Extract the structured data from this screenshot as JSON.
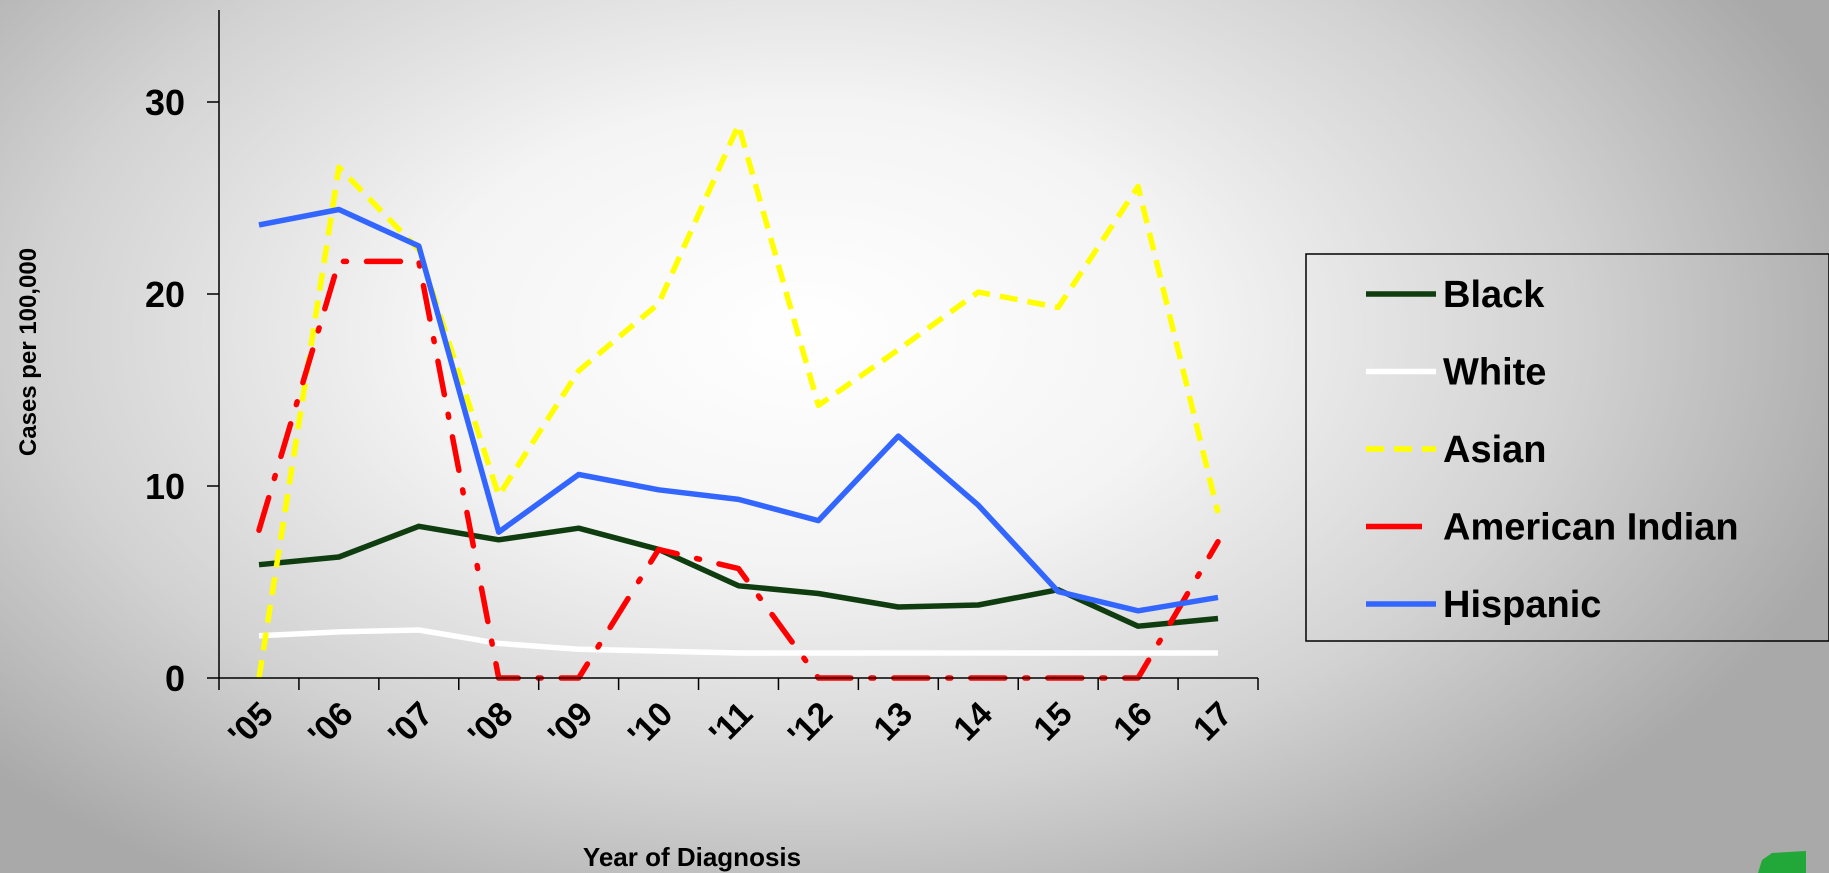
{
  "chart_data": {
    "type": "line",
    "categories": [
      "'05",
      "'06",
      "'07",
      "'08",
      "'09",
      "'10",
      "'11",
      "'12",
      "13",
      "14",
      "15",
      "16",
      "17"
    ],
    "ylabel": "Cases per 100,000",
    "xlabel": "Year of Diagnosis",
    "ylim": [
      0,
      35
    ],
    "yticks": [
      0,
      10,
      20,
      30
    ],
    "legend_position": "right",
    "series": [
      {
        "name": "Black",
        "color": "#0f3d0f",
        "dash": "solid",
        "values": [
          5.9,
          6.3,
          7.9,
          7.2,
          7.8,
          6.7,
          4.8,
          4.4,
          3.7,
          3.8,
          4.6,
          2.7,
          3.1
        ]
      },
      {
        "name": "White",
        "color": "#ffffff",
        "dash": "solid",
        "values": [
          2.2,
          2.4,
          2.5,
          1.8,
          1.5,
          1.4,
          1.3,
          1.3,
          1.3,
          1.3,
          1.3,
          1.3,
          1.3
        ]
      },
      {
        "name": "Asian",
        "color": "#ffff00",
        "dash": "dash",
        "values": [
          0,
          26.6,
          22.3,
          9.5,
          16,
          19.5,
          28.8,
          14.2,
          17.1,
          20.1,
          19.3,
          25.6,
          8.6
        ]
      },
      {
        "name": "American Indian",
        "color": "#ff0000",
        "dash": "dashdot",
        "values": [
          7.7,
          21.7,
          21.7,
          0,
          0,
          6.7,
          5.7,
          0,
          0,
          0,
          0,
          0,
          7.1
        ]
      },
      {
        "name": "Hispanic",
        "color": "#3366ff",
        "dash": "solid",
        "values": [
          23.6,
          24.4,
          22.5,
          7.6,
          10.6,
          9.8,
          9.3,
          8.2,
          12.6,
          9,
          4.5,
          3.5,
          4.2
        ]
      }
    ]
  }
}
